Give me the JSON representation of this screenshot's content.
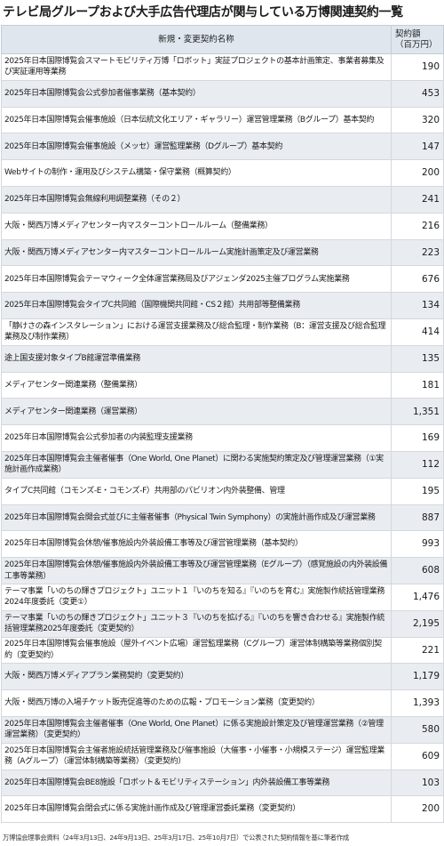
{
  "title": "テレビ局グループおよび大手広告代理店が関与している万博関連契約一覧",
  "columns": {
    "name": "新規・変更契約名称",
    "amount_line1": "契約額",
    "amount_line2": "（百万円）"
  },
  "rows": [
    {
      "name": "2025年日本国際博覧会スマートモビリティ万博「ロボット」実証プロジェクトの基本計画策定、事業者募集及び実証運用等業務",
      "amount": "190"
    },
    {
      "name": "2025年日本国際博覧会公式参加者催事業務（基本契約）",
      "amount": "453"
    },
    {
      "name": "2025年日本国際博覧会催事施設（日本伝統文化エリア・ギャラリー）運営管理業務（Bグループ）基本契約",
      "amount": "320"
    },
    {
      "name": "2025年日本国際博覧会催事施設（メッセ）運営監理業務（Dグループ）基本契約",
      "amount": "147"
    },
    {
      "name": "Webサイトの制作・運用及びシステム構築・保守業務（概算契約）",
      "amount": "200"
    },
    {
      "name": "2025年日本国際博覧会無線利用調整業務（その２）",
      "amount": "241"
    },
    {
      "name": "大阪・関西万博メディアセンター内マスターコントロールルーム（整備業務）",
      "amount": "216"
    },
    {
      "name": "大阪・関西万博メディアセンター内マスターコントロールルーム実施計画策定及び運営業務",
      "amount": "223"
    },
    {
      "name": "2025年日本国際博覧会テーマウィーク全体運営業務局及びアジェンダ2025主催プログラム実施業務",
      "amount": "676"
    },
    {
      "name": "2025年日本国際博覧会タイプC共同館（国際機関共同館・CS２館）共用部等整備業務",
      "amount": "134"
    },
    {
      "name": "「静けさの森インスタレーション」における運営支援業務及び総合監理・制作業務（B：運営支援及び総合監理業務及び制作業務）",
      "amount": "414"
    },
    {
      "name": "途上国支援対象タイプB館運営準備業務",
      "amount": "135"
    },
    {
      "name": "メディアセンター関連業務（整備業務）",
      "amount": "181"
    },
    {
      "name": "メディアセンター関連業務（運営業務）",
      "amount": "1,351"
    },
    {
      "name": "2025年日本国際博覧会公式参加者の内装監理支援業務",
      "amount": "169"
    },
    {
      "name": "2025年日本国際博覧会主催者催事（One World, One Planet）に関わる実施契約策定及び管理運営業務（①実施計画作成業務）",
      "amount": "112"
    },
    {
      "name": "タイプC共同館（コモンズ-E・コモンズ-F）共用部のパビリオン内外装整備、管理",
      "amount": "195"
    },
    {
      "name": "2025年日本国際博覧会開会式並びに主催者催事（Physical Twin Symphony）の実施計画作成及び運営業務",
      "amount": "887"
    },
    {
      "name": "2025年日本国際博覧会休憩/催事施設内外装設備工事等及び運営管理業務（基本契約）",
      "amount": "993"
    },
    {
      "name": "2025年日本国際博覧会休憩/催事施設内外装設備工事等及び運営管理業務（Eグループ）（感覚施設の内外装設備工事等業務）",
      "amount": "608"
    },
    {
      "name": "テーマ事業「いのちの輝きプロジェクト」ユニット１『いのちを知る』『いのちを育む』実施製作統括管理業務2024年度委託（変更①）",
      "amount": "1,476"
    },
    {
      "name": "テーマ事業「いのちの輝きプロジェクト」ユニット３『いのちを拡げる』『いのちを響き合わせる』実施製作統括管理業務2025年度委託（変更契約）",
      "amount": "2,195"
    },
    {
      "name": "2025年日本国際博覧会催事施設（屋外イベント広場）運営監理業務（Cグループ）運営体制構築等業務個別契約（変更契約）",
      "amount": "221"
    },
    {
      "name": "大阪・関西万博メディアプラン業務契約（変更契約）",
      "amount": "1,179"
    },
    {
      "name": "大阪・関西万博の入場チケット販売促進等のための広報・プロモーション業務（変更契約）",
      "amount": "1,393"
    },
    {
      "name": "2025年日本国際博覧会主催者催事（One World, One Planet）に係る実施設計策定及び管理運営業務（②管理運営業務）（変更契約）",
      "amount": "580"
    },
    {
      "name": "2025年日本国際博覧会主催者施設統括管理業務及び催事施設（大催事・小催事・小規模ステージ）運営監理業務（Aグループ）（運営体制構築等業務）（変更契約）",
      "amount": "609"
    },
    {
      "name": "2025年日本国際博覧会BE8施設「ロボット＆モビリティステーション」内外装設備工事等業務",
      "amount": "103"
    },
    {
      "name": "2025年日本国際博覧会閉会式に係る実施計画作成及び管理運営委託業務（変更契約）",
      "amount": "200"
    }
  ],
  "source": "万博協会理事会資料（24年3月13日、24年9月13日、25年3月17日、25年10月7日）で公表された契約情報を基に筆者作成"
}
